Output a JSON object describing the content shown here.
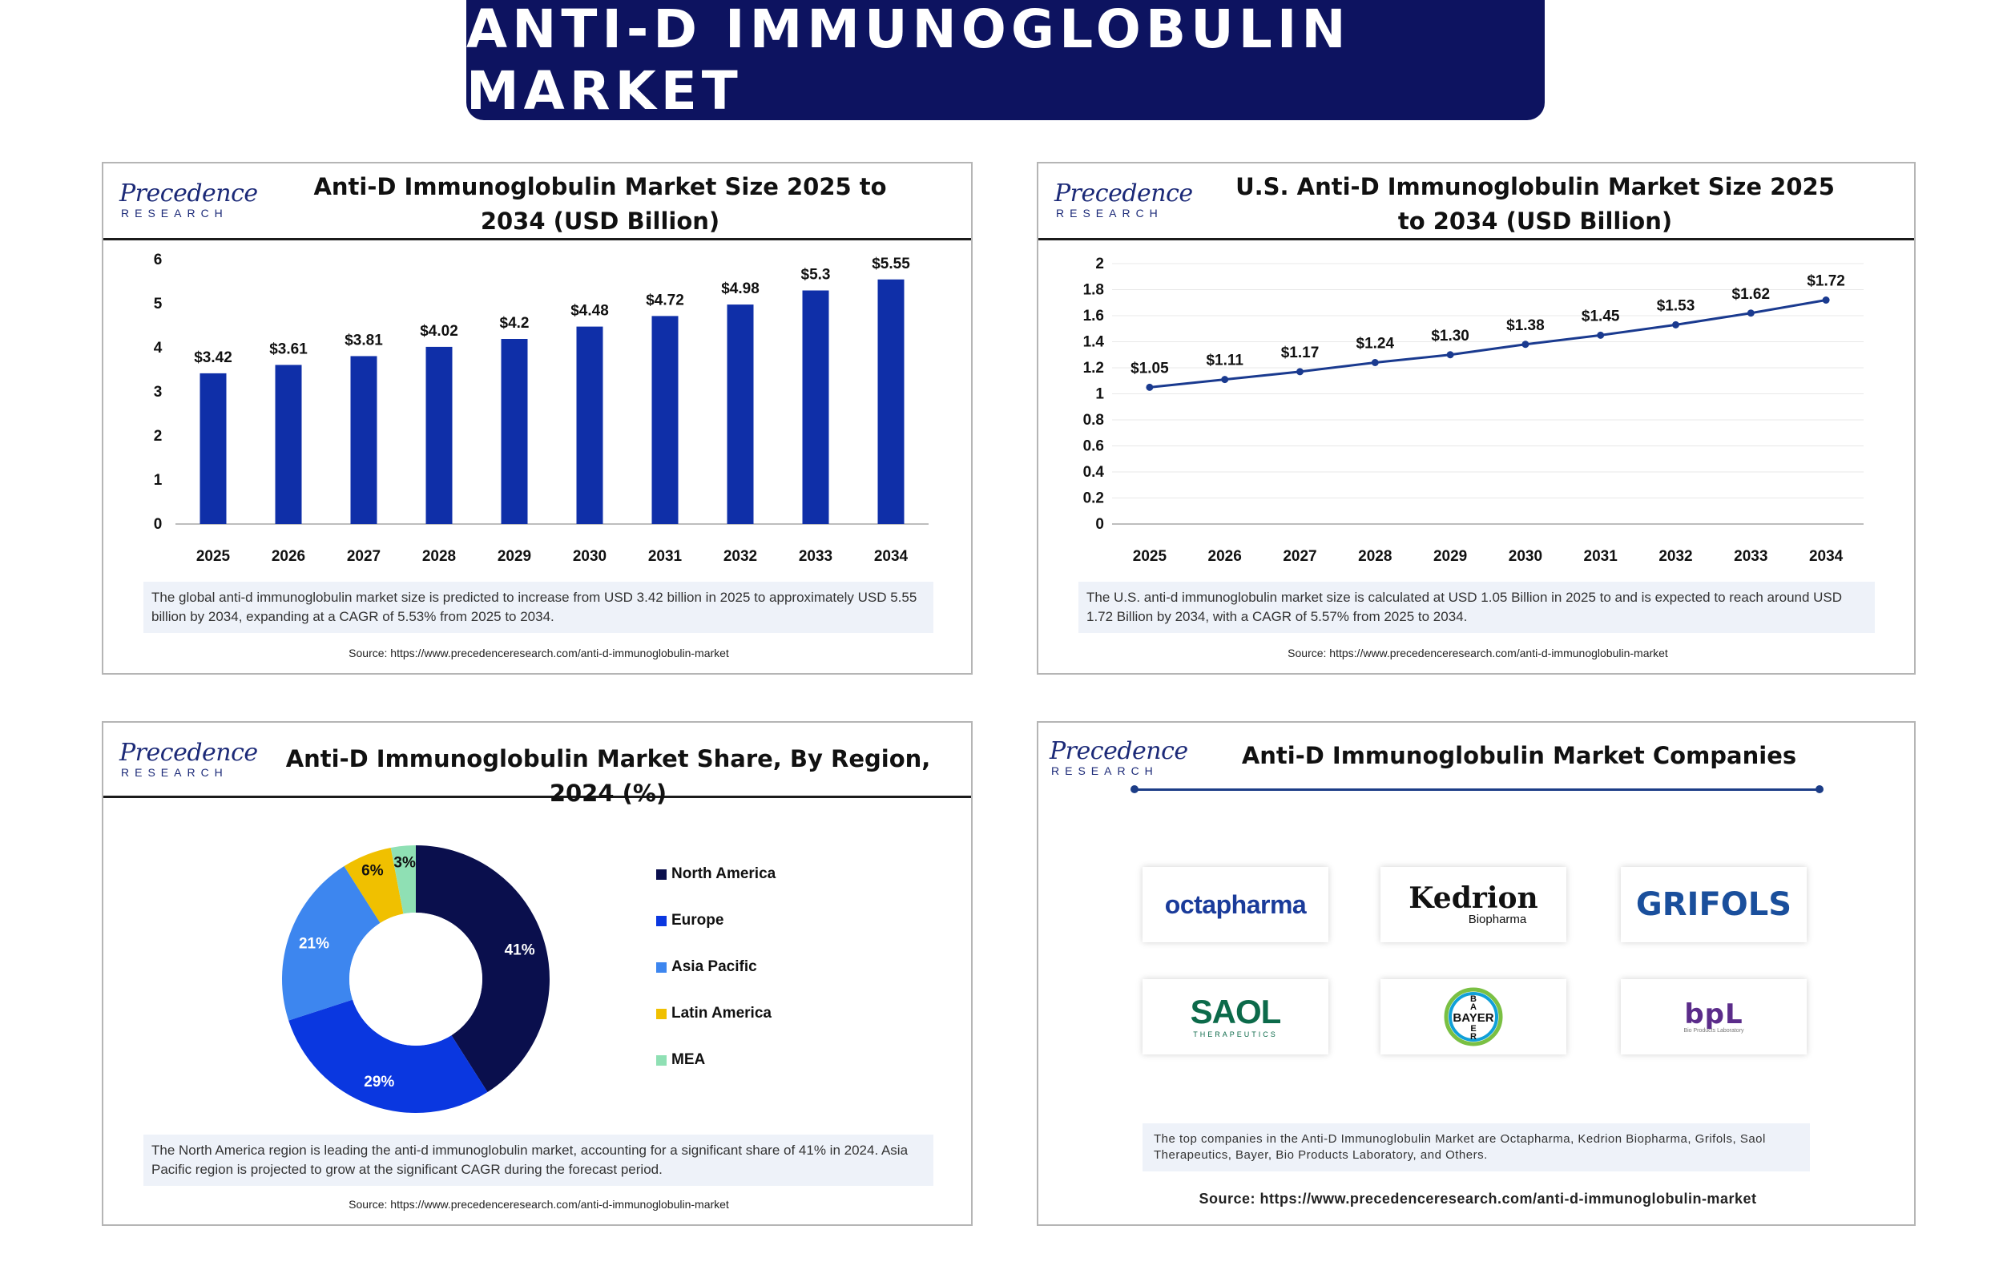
{
  "main_title": "ANTI-D IMMUNOGLOBULIN MARKET",
  "logo": {
    "word": "Precedence",
    "sub": "RESEARCH"
  },
  "colors": {
    "banner": "#0d1360",
    "bar": "#0f2fa8",
    "line": "#1a3a8f",
    "north_america": "#0a0f4d",
    "europe": "#0a37e0",
    "asia_pacific": "#3d86ef",
    "latin_america": "#f0c000",
    "mea": "#8fe0b4"
  },
  "global_panel": {
    "title": "Anti-D Immunoglobulin Market Size 2025 to 2034 (USD Billion)",
    "note": "The global anti-d immunoglobulin market size is predicted to increase from USD 3.42 billion in 2025 to approximately USD 5.55 billion by 2034, expanding at a CAGR of 5.53% from 2025 to 2034.",
    "source": "Source: https://www.precedenceresearch.com/anti-d-immunoglobulin-market"
  },
  "us_panel": {
    "title": "U.S. Anti-D Immunoglobulin Market Size 2025 to 2034 (USD Billion)",
    "note": "The U.S. anti-d immunoglobulin market size is calculated at USD 1.05 Billion in 2025 to and is expected to reach around USD 1.72 Billion by 2034, with a CAGR of 5.57% from 2025 to 2034.",
    "source": "Source: https://www.precedenceresearch.com/anti-d-immunoglobulin-market"
  },
  "region_panel": {
    "title": "Anti-D Immunoglobulin Market Share, By Region, 2024 (%)",
    "note": "The North America region is leading the anti-d immunoglobulin market, accounting for a significant share of 41% in 2024. Asia Pacific region is projected to grow at the significant CAGR during the forecast period.",
    "source": "Source: https://www.precedenceresearch.com/anti-d-immunoglobulin-market",
    "legend": [
      "North America",
      "Europe",
      "Asia Pacific",
      "Latin America",
      "MEA"
    ]
  },
  "companies_panel": {
    "title": "Anti-D Immunoglobulin Market Companies",
    "companies": [
      {
        "name": "octapharma",
        "icon": "octapharma-logo"
      },
      {
        "name": "Kedrion",
        "sub": "Biopharma",
        "icon": "kedrion-logo"
      },
      {
        "name": "GRIFOLS",
        "icon": "grifols-logo"
      },
      {
        "name": "SAOL",
        "sub": "THERAPEUTICS",
        "icon": "saol-logo"
      },
      {
        "name": "BAYER",
        "icon": "bayer-cross-logo"
      },
      {
        "name": "bpL",
        "sub": "Bio Products Laboratory",
        "icon": "bpl-logo"
      }
    ],
    "note": "The top companies in the Anti-D Immunoglobulin Market are Octapharma, Kedrion Biopharma, Grifols, Saol Therapeutics, Bayer, Bio Products Laboratory, and Others.",
    "source": "Source: https://www.precedenceresearch.com/anti-d-immunoglobulin-market"
  },
  "chart_data": [
    {
      "type": "bar",
      "title": "Anti-D Immunoglobulin Market Size 2025 to 2034 (USD Billion)",
      "categories": [
        "2025",
        "2026",
        "2027",
        "2028",
        "2029",
        "2030",
        "2031",
        "2032",
        "2033",
        "2034"
      ],
      "values": [
        3.42,
        3.61,
        3.81,
        4.02,
        4.2,
        4.48,
        4.72,
        4.98,
        5.3,
        5.55
      ],
      "value_labels": [
        "$3.42",
        "$3.61",
        "$3.81",
        "$4.02",
        "$4.2",
        "$4.48",
        "$4.72",
        "$4.98",
        "$5.3",
        "$5.55"
      ],
      "yticks": [
        "0",
        "1",
        "2",
        "3",
        "4",
        "5",
        "6"
      ],
      "ylim": [
        0,
        6
      ],
      "grid": false
    },
    {
      "type": "line",
      "title": "U.S. Anti-D Immunoglobulin Market Size 2025 to 2034 (USD Billion)",
      "x": [
        "2025",
        "2026",
        "2027",
        "2028",
        "2029",
        "2030",
        "2031",
        "2032",
        "2033",
        "2034"
      ],
      "values": [
        1.05,
        1.11,
        1.17,
        1.24,
        1.3,
        1.38,
        1.45,
        1.53,
        1.62,
        1.72
      ],
      "value_labels": [
        "$1.05",
        "$1.11",
        "$1.17",
        "$1.24",
        "$1.30",
        "$1.38",
        "$1.45",
        "$1.53",
        "$1.62",
        "$1.72"
      ],
      "yticks": [
        "0",
        "0.2",
        "0.4",
        "0.6",
        "0.8",
        "1",
        "1.2",
        "1.4",
        "1.6",
        "1.8",
        "2"
      ],
      "ylim": [
        0,
        2
      ],
      "grid": true
    },
    {
      "type": "pie",
      "title": "Anti-D Immunoglobulin Market Share, By Region, 2024 (%)",
      "categories": [
        "North America",
        "Europe",
        "Asia Pacific",
        "Latin America",
        "MEA"
      ],
      "values": [
        41,
        29,
        21,
        6,
        3
      ],
      "value_labels": [
        "41%",
        "29%",
        "21%",
        "6%",
        "3%"
      ],
      "donut": true,
      "legend": "right"
    }
  ]
}
